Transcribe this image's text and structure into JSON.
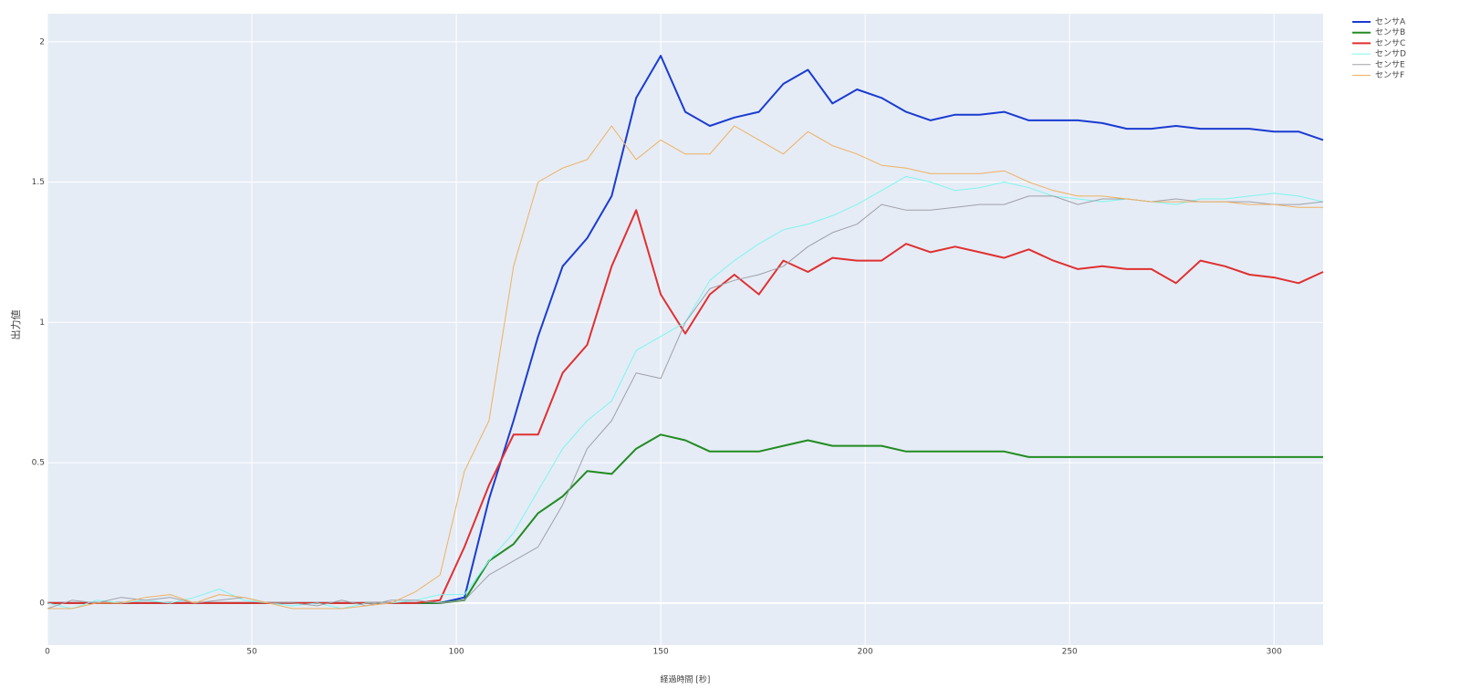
{
  "chart_data": {
    "type": "line",
    "x_label": "経過時間 [秒]",
    "y_label": "出力値",
    "x": [
      0,
      6,
      12,
      18,
      24,
      30,
      36,
      42,
      48,
      54,
      60,
      66,
      72,
      78,
      84,
      90,
      96,
      102,
      108,
      114,
      120,
      126,
      132,
      138,
      144,
      150,
      156,
      162,
      168,
      174,
      180,
      186,
      192,
      198,
      204,
      210,
      216,
      222,
      228,
      234,
      240,
      246,
      252,
      258,
      264,
      270,
      276,
      282,
      288,
      294,
      300,
      306,
      312
    ],
    "xlim": [
      0,
      312
    ],
    "xticks": [
      0,
      50,
      100,
      150,
      200,
      250,
      300
    ],
    "ylim": [
      -0.15,
      2.1
    ],
    "yticks": [
      0,
      0.5,
      1,
      1.5,
      2
    ],
    "grid": true,
    "legend": "top-right",
    "series": [
      {
        "name": "センサA",
        "color": "#1a3bd1",
        "width": 2,
        "values": [
          0,
          0,
          0,
          0,
          0,
          0,
          0,
          0,
          0,
          0,
          0,
          0,
          0,
          0,
          0,
          0,
          0,
          0.02,
          0.37,
          0.65,
          0.95,
          1.2,
          1.3,
          1.45,
          1.8,
          1.95,
          1.75,
          1.7,
          1.73,
          1.75,
          1.85,
          1.9,
          1.78,
          1.83,
          1.8,
          1.75,
          1.72,
          1.74,
          1.74,
          1.75,
          1.72,
          1.72,
          1.72,
          1.71,
          1.69,
          1.69,
          1.7,
          1.69,
          1.69,
          1.69,
          1.68,
          1.68,
          1.65
        ]
      },
      {
        "name": "センサB",
        "color": "#228b22",
        "width": 2,
        "values": [
          0,
          0,
          0,
          0,
          0,
          0,
          0,
          0,
          0,
          0,
          0,
          0,
          0,
          0,
          0,
          0,
          0,
          0.01,
          0.15,
          0.21,
          0.32,
          0.38,
          0.47,
          0.46,
          0.55,
          0.6,
          0.58,
          0.54,
          0.54,
          0.54,
          0.56,
          0.58,
          0.56,
          0.56,
          0.56,
          0.54,
          0.54,
          0.54,
          0.54,
          0.54,
          0.52,
          0.52,
          0.52,
          0.52,
          0.52,
          0.52,
          0.52,
          0.52,
          0.52,
          0.52,
          0.52,
          0.52,
          0.52
        ]
      },
      {
        "name": "センサC",
        "color": "#e03030",
        "width": 2,
        "values": [
          0,
          0,
          0,
          0,
          0,
          0,
          0,
          0,
          0,
          0,
          0,
          0,
          0,
          0,
          0,
          0,
          0.01,
          0.2,
          0.42,
          0.6,
          0.6,
          0.82,
          0.92,
          1.2,
          1.4,
          1.1,
          0.96,
          1.1,
          1.17,
          1.1,
          1.22,
          1.18,
          1.23,
          1.22,
          1.22,
          1.28,
          1.25,
          1.27,
          1.25,
          1.23,
          1.26,
          1.22,
          1.19,
          1.2,
          1.19,
          1.19,
          1.14,
          1.22,
          1.2,
          1.17,
          1.16,
          1.14,
          1.18
        ]
      },
      {
        "name": "センサD",
        "color": "#7ff5ee",
        "width": 1,
        "values": [
          0,
          -0.02,
          0.01,
          0,
          0.01,
          0,
          0.02,
          0.05,
          0.01,
          0,
          -0.01,
          0,
          -0.02,
          0,
          0,
          0.01,
          0.03,
          0.03,
          0.15,
          0.25,
          0.4,
          0.55,
          0.65,
          0.72,
          0.9,
          0.95,
          1.0,
          1.15,
          1.22,
          1.28,
          1.33,
          1.35,
          1.38,
          1.42,
          1.47,
          1.52,
          1.5,
          1.47,
          1.48,
          1.5,
          1.48,
          1.45,
          1.44,
          1.43,
          1.44,
          1.43,
          1.42,
          1.44,
          1.44,
          1.45,
          1.46,
          1.45,
          1.43
        ]
      },
      {
        "name": "センサE",
        "color": "#a0a0a8",
        "width": 1,
        "values": [
          -0.02,
          0.01,
          0,
          0.02,
          0.01,
          0.02,
          0,
          0.01,
          0.02,
          0,
          0,
          -0.01,
          0.01,
          -0.01,
          0.01,
          0.01,
          0,
          0.01,
          0.1,
          0.15,
          0.2,
          0.35,
          0.55,
          0.65,
          0.82,
          0.8,
          1.0,
          1.12,
          1.15,
          1.17,
          1.2,
          1.27,
          1.32,
          1.35,
          1.42,
          1.4,
          1.4,
          1.41,
          1.42,
          1.42,
          1.45,
          1.45,
          1.42,
          1.44,
          1.44,
          1.43,
          1.44,
          1.43,
          1.43,
          1.43,
          1.42,
          1.42,
          1.43
        ]
      },
      {
        "name": "センサF",
        "color": "#f0b060",
        "width": 1,
        "values": [
          -0.02,
          -0.02,
          0,
          0,
          0.02,
          0.03,
          0,
          0.03,
          0.02,
          0,
          -0.02,
          -0.02,
          -0.02,
          -0.01,
          0,
          0.04,
          0.1,
          0.47,
          0.65,
          1.2,
          1.5,
          1.55,
          1.58,
          1.7,
          1.58,
          1.65,
          1.6,
          1.6,
          1.7,
          1.65,
          1.6,
          1.68,
          1.63,
          1.6,
          1.56,
          1.55,
          1.53,
          1.53,
          1.53,
          1.54,
          1.5,
          1.47,
          1.45,
          1.45,
          1.44,
          1.43,
          1.43,
          1.43,
          1.43,
          1.42,
          1.42,
          1.41,
          1.41
        ]
      }
    ]
  }
}
